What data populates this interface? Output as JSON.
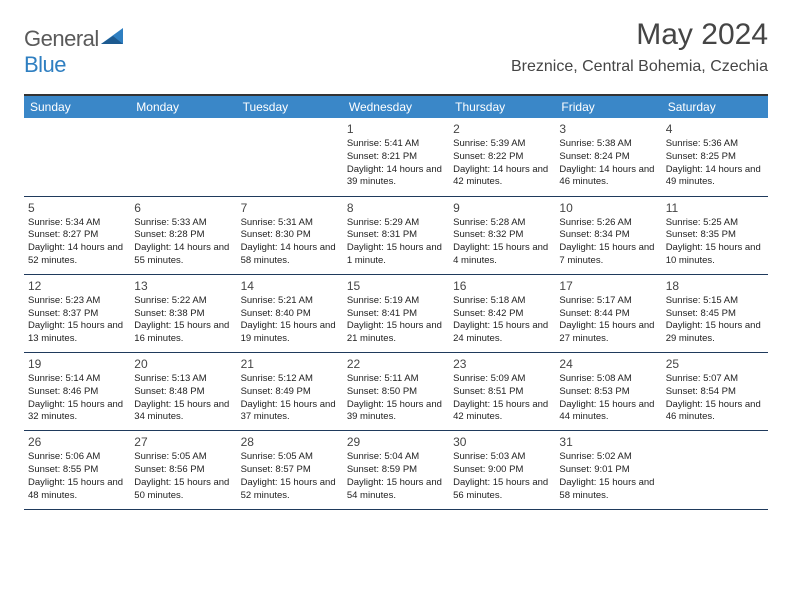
{
  "brand": {
    "word1": "General",
    "word2": "Blue"
  },
  "title": "May 2024",
  "location": "Breznice, Central Bohemia, Czechia",
  "header_bg": "#3a87c8",
  "rule_color": "#1f3a5c",
  "day_headers": [
    "Sunday",
    "Monday",
    "Tuesday",
    "Wednesday",
    "Thursday",
    "Friday",
    "Saturday"
  ],
  "weeks": [
    [
      null,
      null,
      null,
      {
        "n": "1",
        "sr": "5:41 AM",
        "ss": "8:21 PM",
        "dl": "14 hours and 39 minutes."
      },
      {
        "n": "2",
        "sr": "5:39 AM",
        "ss": "8:22 PM",
        "dl": "14 hours and 42 minutes."
      },
      {
        "n": "3",
        "sr": "5:38 AM",
        "ss": "8:24 PM",
        "dl": "14 hours and 46 minutes."
      },
      {
        "n": "4",
        "sr": "5:36 AM",
        "ss": "8:25 PM",
        "dl": "14 hours and 49 minutes."
      }
    ],
    [
      {
        "n": "5",
        "sr": "5:34 AM",
        "ss": "8:27 PM",
        "dl": "14 hours and 52 minutes."
      },
      {
        "n": "6",
        "sr": "5:33 AM",
        "ss": "8:28 PM",
        "dl": "14 hours and 55 minutes."
      },
      {
        "n": "7",
        "sr": "5:31 AM",
        "ss": "8:30 PM",
        "dl": "14 hours and 58 minutes."
      },
      {
        "n": "8",
        "sr": "5:29 AM",
        "ss": "8:31 PM",
        "dl": "15 hours and 1 minute."
      },
      {
        "n": "9",
        "sr": "5:28 AM",
        "ss": "8:32 PM",
        "dl": "15 hours and 4 minutes."
      },
      {
        "n": "10",
        "sr": "5:26 AM",
        "ss": "8:34 PM",
        "dl": "15 hours and 7 minutes."
      },
      {
        "n": "11",
        "sr": "5:25 AM",
        "ss": "8:35 PM",
        "dl": "15 hours and 10 minutes."
      }
    ],
    [
      {
        "n": "12",
        "sr": "5:23 AM",
        "ss": "8:37 PM",
        "dl": "15 hours and 13 minutes."
      },
      {
        "n": "13",
        "sr": "5:22 AM",
        "ss": "8:38 PM",
        "dl": "15 hours and 16 minutes."
      },
      {
        "n": "14",
        "sr": "5:21 AM",
        "ss": "8:40 PM",
        "dl": "15 hours and 19 minutes."
      },
      {
        "n": "15",
        "sr": "5:19 AM",
        "ss": "8:41 PM",
        "dl": "15 hours and 21 minutes."
      },
      {
        "n": "16",
        "sr": "5:18 AM",
        "ss": "8:42 PM",
        "dl": "15 hours and 24 minutes."
      },
      {
        "n": "17",
        "sr": "5:17 AM",
        "ss": "8:44 PM",
        "dl": "15 hours and 27 minutes."
      },
      {
        "n": "18",
        "sr": "5:15 AM",
        "ss": "8:45 PM",
        "dl": "15 hours and 29 minutes."
      }
    ],
    [
      {
        "n": "19",
        "sr": "5:14 AM",
        "ss": "8:46 PM",
        "dl": "15 hours and 32 minutes."
      },
      {
        "n": "20",
        "sr": "5:13 AM",
        "ss": "8:48 PM",
        "dl": "15 hours and 34 minutes."
      },
      {
        "n": "21",
        "sr": "5:12 AM",
        "ss": "8:49 PM",
        "dl": "15 hours and 37 minutes."
      },
      {
        "n": "22",
        "sr": "5:11 AM",
        "ss": "8:50 PM",
        "dl": "15 hours and 39 minutes."
      },
      {
        "n": "23",
        "sr": "5:09 AM",
        "ss": "8:51 PM",
        "dl": "15 hours and 42 minutes."
      },
      {
        "n": "24",
        "sr": "5:08 AM",
        "ss": "8:53 PM",
        "dl": "15 hours and 44 minutes."
      },
      {
        "n": "25",
        "sr": "5:07 AM",
        "ss": "8:54 PM",
        "dl": "15 hours and 46 minutes."
      }
    ],
    [
      {
        "n": "26",
        "sr": "5:06 AM",
        "ss": "8:55 PM",
        "dl": "15 hours and 48 minutes."
      },
      {
        "n": "27",
        "sr": "5:05 AM",
        "ss": "8:56 PM",
        "dl": "15 hours and 50 minutes."
      },
      {
        "n": "28",
        "sr": "5:05 AM",
        "ss": "8:57 PM",
        "dl": "15 hours and 52 minutes."
      },
      {
        "n": "29",
        "sr": "5:04 AM",
        "ss": "8:59 PM",
        "dl": "15 hours and 54 minutes."
      },
      {
        "n": "30",
        "sr": "5:03 AM",
        "ss": "9:00 PM",
        "dl": "15 hours and 56 minutes."
      },
      {
        "n": "31",
        "sr": "5:02 AM",
        "ss": "9:01 PM",
        "dl": "15 hours and 58 minutes."
      },
      null
    ]
  ],
  "labels": {
    "sunrise": "Sunrise:",
    "sunset": "Sunset:",
    "daylight": "Daylight:"
  }
}
